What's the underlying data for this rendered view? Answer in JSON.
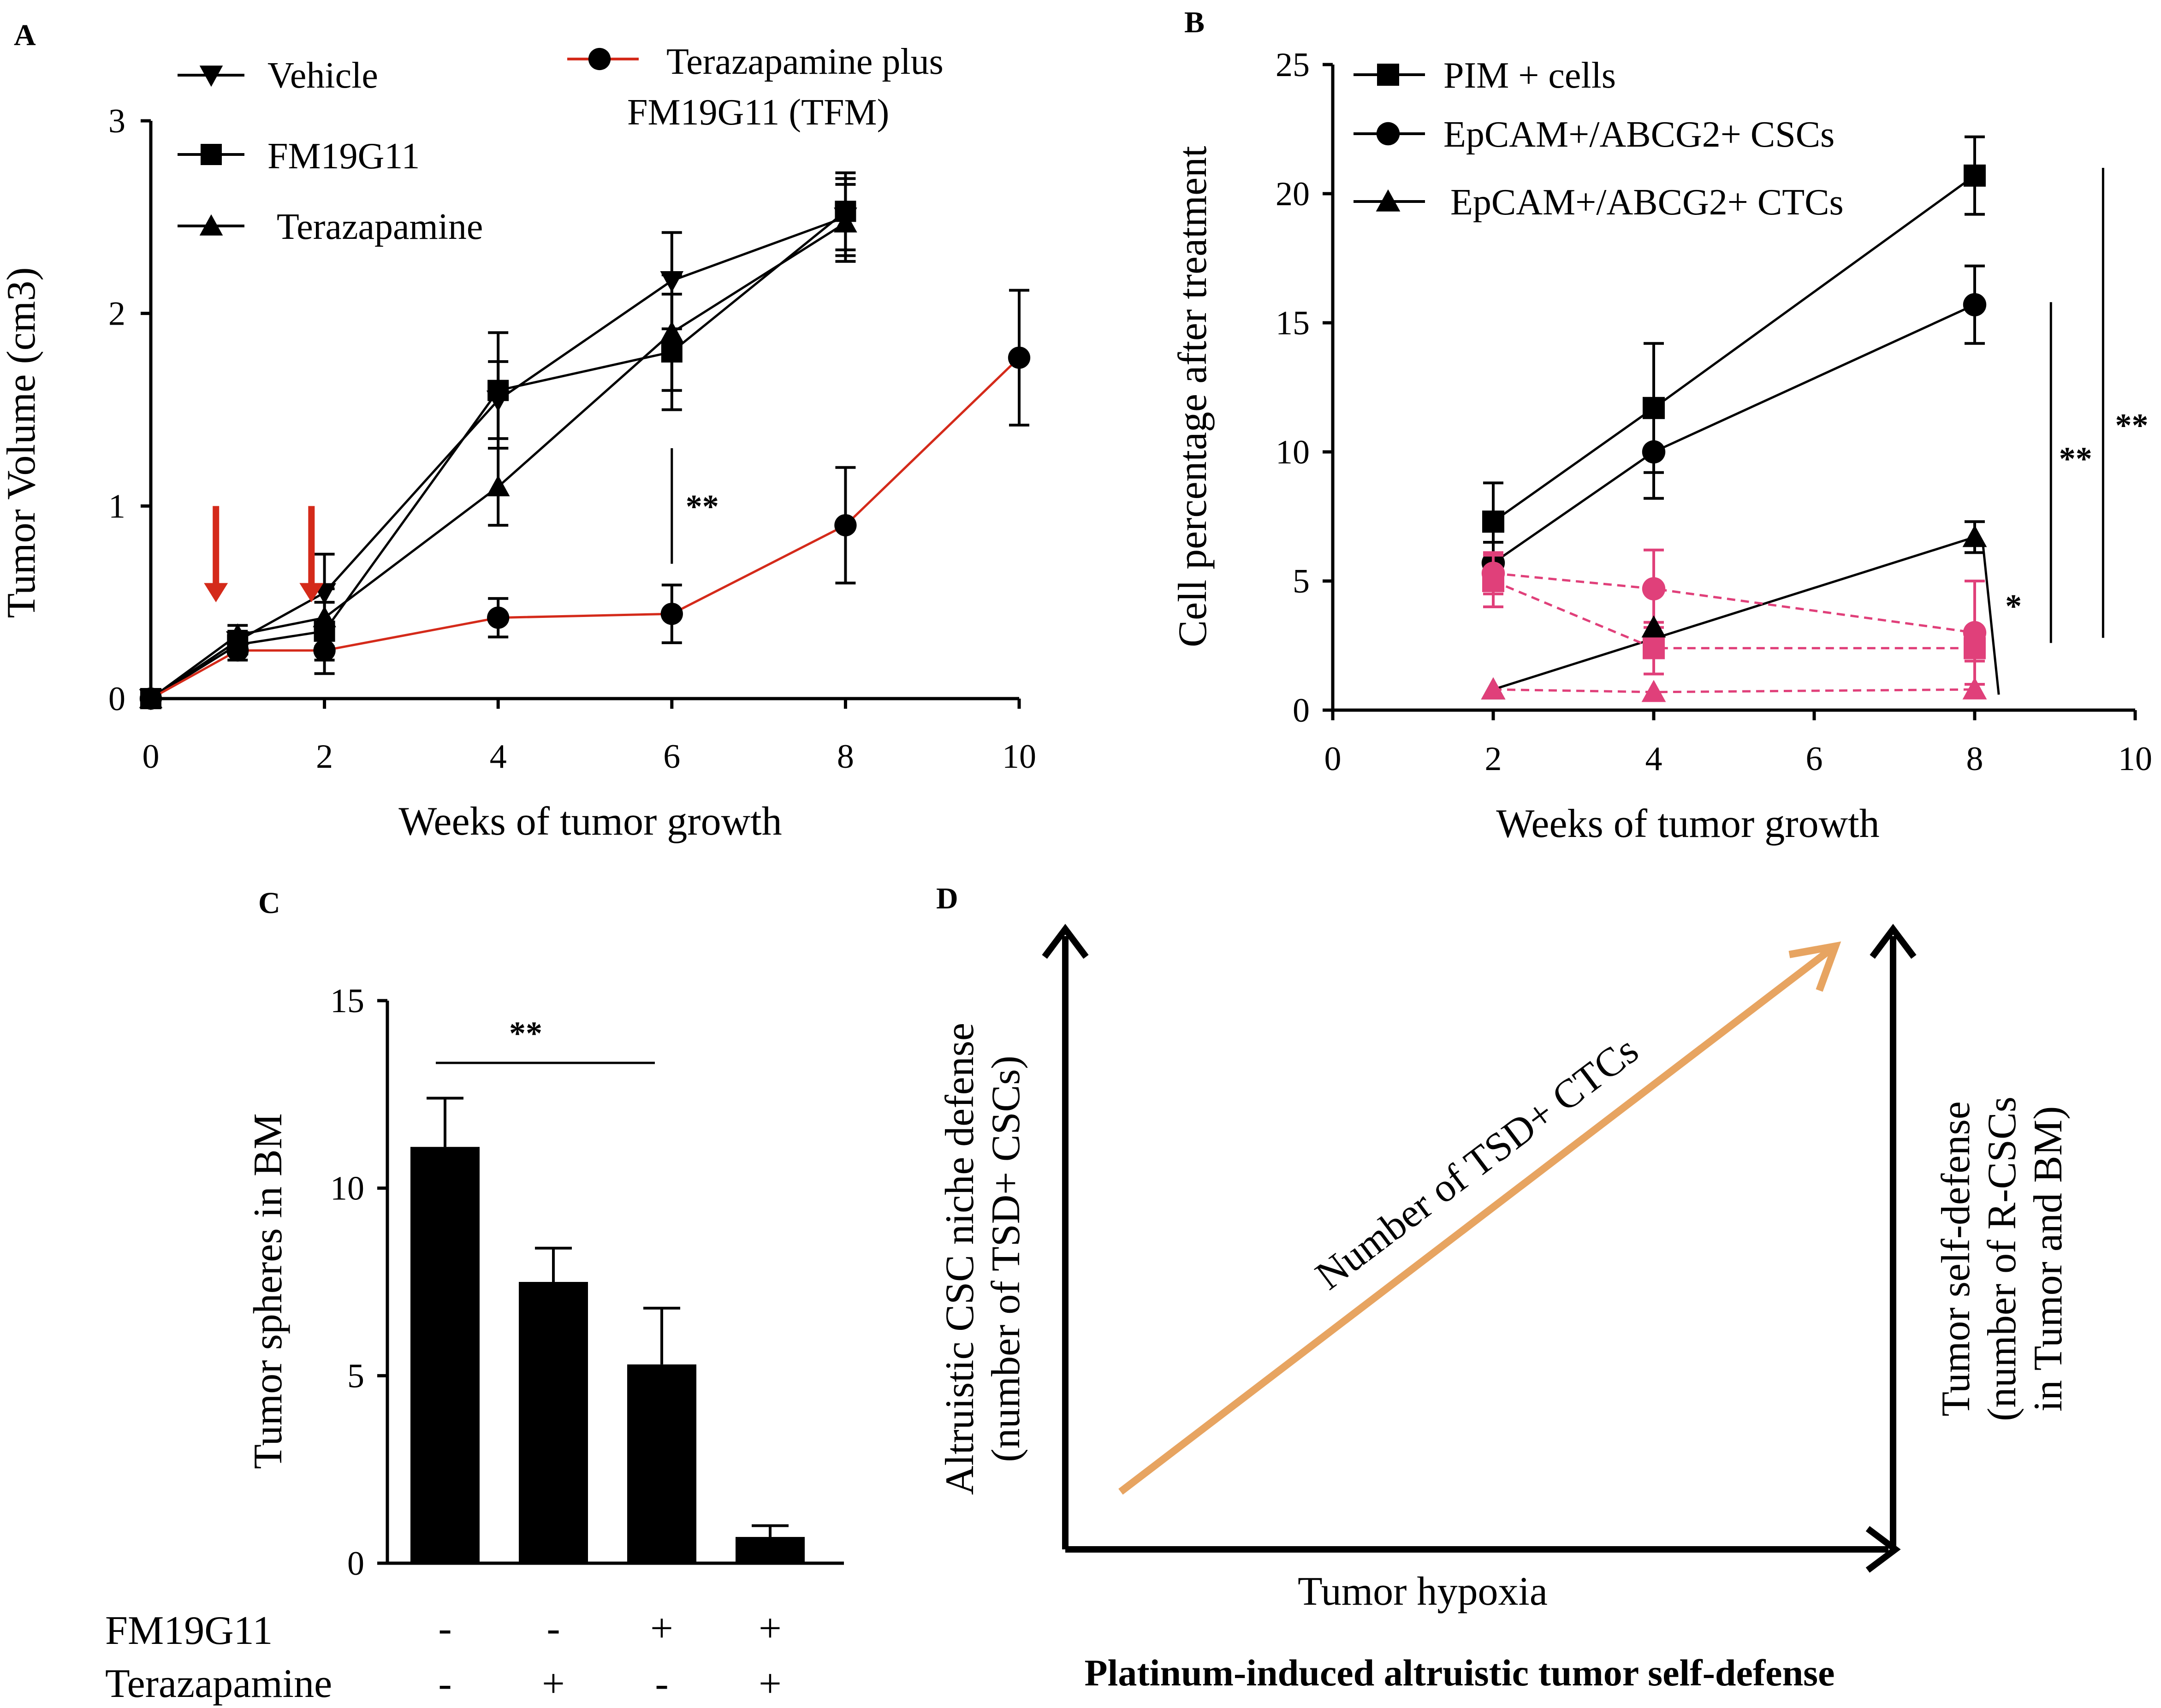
{
  "colors": {
    "black": "#000000",
    "red_series": "#d42a1a",
    "pink_series": "#e0407a",
    "arrow_orange": "#e7a461",
    "marker_red": "#d42a1a"
  },
  "chart_data": [
    {
      "id": "A",
      "panel_label": "A",
      "type": "line",
      "xlabel": "Weeks of tumor growth",
      "ylabel": "Tumor Volume (cm3)",
      "xlim": [
        0,
        10
      ],
      "ylim": [
        0,
        3
      ],
      "xticks": [
        "0",
        "2",
        "4",
        "6",
        "8",
        "10"
      ],
      "yticks": [
        "0",
        "1",
        "2",
        "3"
      ],
      "series": [
        {
          "name": "Vehicle",
          "marker": "triangle-down",
          "color": "#000000",
          "x": [
            0,
            1,
            2,
            4,
            6,
            8
          ],
          "y": [
            0,
            0.3,
            0.55,
            1.55,
            2.17,
            2.5
          ],
          "err": [
            0,
            0.05,
            0.2,
            0.2,
            0.25,
            0.2
          ]
        },
        {
          "name": "FM19G11",
          "marker": "square",
          "color": "#000000",
          "x": [
            0,
            1,
            2,
            4,
            6,
            8
          ],
          "y": [
            0,
            0.28,
            0.35,
            1.6,
            1.8,
            2.53
          ],
          "err": [
            0,
            0.05,
            0.15,
            0.3,
            0.3,
            0.2
          ]
        },
        {
          "name": "Terazapamine",
          "marker": "triangle-up",
          "color": "#000000",
          "x": [
            0,
            1,
            2,
            4,
            6,
            8
          ],
          "y": [
            0,
            0.33,
            0.42,
            1.1,
            1.9,
            2.47
          ],
          "err": [
            0,
            0.05,
            0.15,
            0.2,
            0.3,
            0.2
          ]
        },
        {
          "name": "Terazapamine plus FM19G11 (TFM)",
          "marker": "circle",
          "color": "#d42a1a",
          "x": [
            0,
            1,
            2,
            4,
            6,
            8,
            10
          ],
          "y": [
            0,
            0.25,
            0.25,
            0.42,
            0.44,
            0.9,
            1.77
          ],
          "err": [
            0,
            0.05,
            0.12,
            0.1,
            0.15,
            0.3,
            0.35
          ]
        }
      ],
      "legend": [
        "Vehicle",
        "FM19G11",
        "Terazapamine"
      ],
      "legend_tfm_line1": "Terazapamine plus",
      "legend_tfm_line2": "FM19G11 (TFM)",
      "treatment_arrows_at_weeks": [
        0.75,
        1.85
      ],
      "significance": [
        {
          "label": "**",
          "at_week": 6
        }
      ]
    },
    {
      "id": "B",
      "panel_label": "B",
      "type": "line",
      "xlabel": "Weeks of tumor growth",
      "ylabel": "Cell percentage after treatment",
      "xlim": [
        0,
        10
      ],
      "ylim": [
        0,
        25
      ],
      "xticks": [
        "0",
        "2",
        "4",
        "6",
        "8",
        "10"
      ],
      "yticks": [
        "0",
        "5",
        "10",
        "15",
        "20",
        "25"
      ],
      "series": [
        {
          "name": "PIM + cells",
          "marker": "square",
          "color": "#000000",
          "x": [
            2,
            4,
            8
          ],
          "y": [
            7.3,
            11.7,
            20.7
          ],
          "err": [
            1.5,
            2.5,
            1.5
          ]
        },
        {
          "name": "EpCAM+/ABCG2+ CSCs",
          "marker": "circle",
          "color": "#000000",
          "x": [
            2,
            4,
            8
          ],
          "y": [
            5.7,
            10.0,
            15.7
          ],
          "err": [
            0.8,
            1.8,
            1.5
          ]
        },
        {
          "name": "EpCAM+/ABCG2+ CTCs",
          "marker": "triangle-up",
          "color": "#000000",
          "x": [
            2,
            8
          ],
          "y": [
            0.8,
            6.7
          ],
          "err": [
            0,
            0.6
          ]
        },
        {
          "name": "PIM + cells (treated)",
          "marker": "square",
          "color": "#e0407a",
          "dashed": true,
          "x": [
            2,
            4,
            8
          ],
          "y": [
            5.0,
            2.4,
            2.4
          ],
          "err": [
            1.0,
            1.0,
            0.5
          ]
        },
        {
          "name": "EpCAM+/ABCG2+ CSCs (treated)",
          "marker": "circle",
          "color": "#e0407a",
          "dashed": true,
          "x": [
            2,
            4,
            8
          ],
          "y": [
            5.3,
            4.7,
            3.0
          ],
          "err": [
            0.8,
            1.5,
            2.0
          ]
        },
        {
          "name": "EpCAM+/ABCG2+ CTCs (treated)",
          "marker": "triangle-up",
          "color": "#e0407a",
          "dashed": true,
          "x": [
            2,
            4,
            8
          ],
          "y": [
            0.8,
            0.7,
            0.8
          ],
          "err": [
            0,
            0,
            0
          ]
        }
      ],
      "extra_points": [
        {
          "x": 4,
          "y": 3.2,
          "marker": "triangle-up",
          "color": "#000000"
        }
      ],
      "legend": [
        "PIM + cells",
        "EpCAM+/ABCG2+ CSCs",
        "EpCAM+/ABCG2+ CTCs"
      ],
      "significance": [
        "*",
        "**",
        "**"
      ]
    },
    {
      "id": "C",
      "panel_label": "C",
      "type": "bar",
      "ylabel": "Tumor spheres in BM",
      "ylim": [
        0,
        15
      ],
      "yticks": [
        "0",
        "5",
        "10",
        "15"
      ],
      "values": [
        11.1,
        7.5,
        5.3,
        0.7
      ],
      "errors": [
        1.3,
        0.9,
        1.5,
        0.3
      ],
      "row_labels": [
        "FM19G11",
        "Terazapamine"
      ],
      "fm19g11_signs": [
        "-",
        "-",
        "+",
        "+"
      ],
      "terazapamine_signs": [
        "-",
        "+",
        "-",
        "+"
      ],
      "significance": {
        "label": "**"
      }
    }
  ],
  "diagram_d": {
    "panel_label": "D",
    "x_axis_label": "Tumor hypoxia",
    "left_label_line1": "Altruistic  CSC niche defense",
    "left_label_line2": "(number of TSD+ CSCs)",
    "right_label_line1": "Tumor self-defense",
    "right_label_line2": "(number of R-CSCs",
    "right_label_line3": "in Tumor and BM)",
    "arrow_label": "Number of TSD+ CTCs",
    "title": "Platinum-induced altruistic tumor self-defense"
  }
}
